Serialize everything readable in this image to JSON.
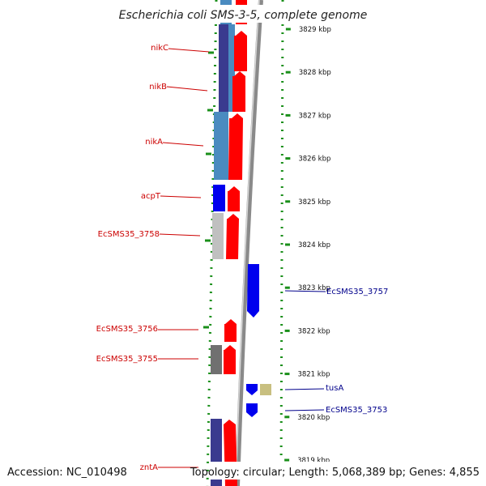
{
  "title": "Escherichia coli SMS-3-5, complete genome",
  "footer": {
    "accession": "Accession: NC_010498",
    "topology": "Topology: circular; Length: 5,068,389 bp; Genes: 4,855"
  },
  "colors": {
    "red": "#ff0000",
    "blue": "#0000ee",
    "dark_blue": "#3a3a8f",
    "steel_blue": "#4a8bc0",
    "light_gray": "#c0c0c0",
    "dark_gray": "#707070",
    "khaki": "#c8bf80",
    "green": "#1a8f1a",
    "navy_text": "#00008b"
  },
  "ruler": {
    "unit": "kbp",
    "ticks": [
      {
        "kbp": 3829,
        "label": "3829 kbp"
      },
      {
        "kbp": 3828,
        "label": "3828 kbp"
      },
      {
        "kbp": 3827,
        "label": "3827 kbp"
      },
      {
        "kbp": 3826,
        "label": "3826 kbp"
      },
      {
        "kbp": 3825,
        "label": "3825 kbp"
      },
      {
        "kbp": 3824,
        "label": "3824 kbp"
      },
      {
        "kbp": 3823,
        "label": "3823 kbp"
      },
      {
        "kbp": 3822,
        "label": "3822 kbp"
      },
      {
        "kbp": 3821,
        "label": "3821 kbp"
      },
      {
        "kbp": 3820,
        "label": "3820 kbp"
      },
      {
        "kbp": 3819,
        "label": "3819 kbp"
      }
    ]
  },
  "genes_left": [
    {
      "name": "nikC"
    },
    {
      "name": "nikB"
    },
    {
      "name": "nikA"
    },
    {
      "name": "acpT"
    },
    {
      "name": "EcSMS35_3758"
    },
    {
      "name": "EcSMS35_3756"
    },
    {
      "name": "EcSMS35_3755"
    },
    {
      "name": "zntA"
    }
  ],
  "genes_right": [
    {
      "name": "EcSMS35_3757"
    },
    {
      "name": "tusA"
    },
    {
      "name": "EcSMS35_3753"
    }
  ]
}
